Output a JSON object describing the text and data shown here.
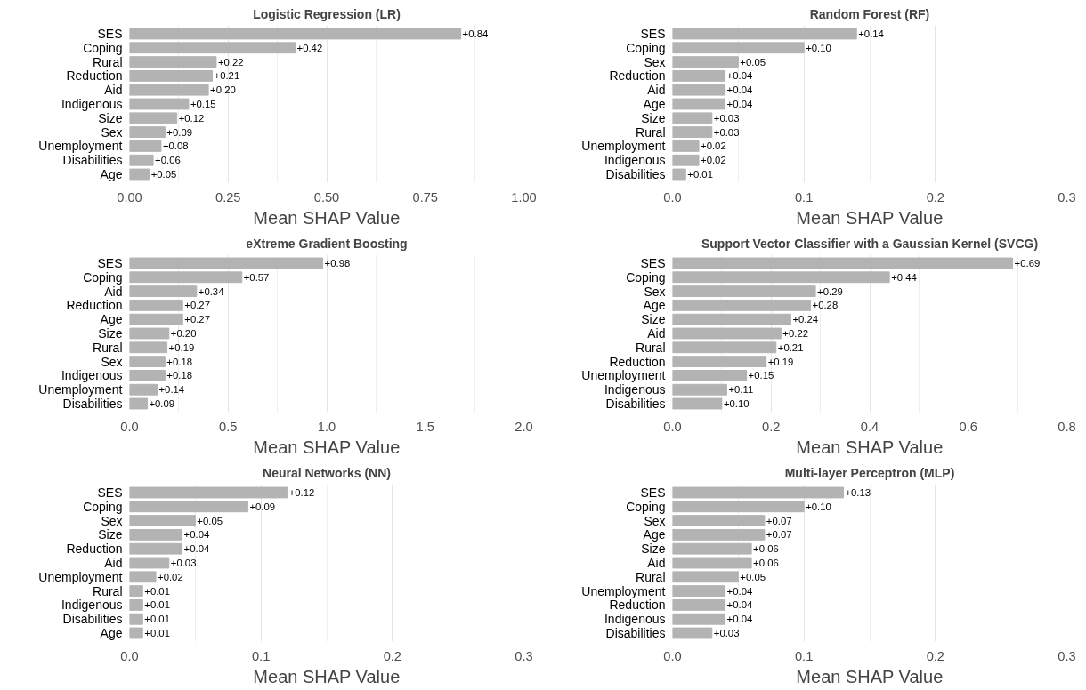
{
  "chart_data": [
    {
      "type": "bar",
      "orientation": "horizontal",
      "title": "Logistic Regression (LR)",
      "xlabel": "Mean SHAP Value",
      "grid": "x",
      "color": "#b3b3b3",
      "categories": [
        "SES",
        "Coping",
        "Rural",
        "Reduction",
        "Aid",
        "Indigenous",
        "Size",
        "Sex",
        "Unemployment",
        "Disabilities",
        "Age"
      ],
      "values": [
        0.84,
        0.42,
        0.22,
        0.21,
        0.2,
        0.15,
        0.12,
        0.09,
        0.08,
        0.06,
        0.05
      ],
      "value_labels": [
        "+0.84",
        "+0.42",
        "+0.22",
        "+0.21",
        "+0.20",
        "+0.15",
        "+0.12",
        "+0.09",
        "+0.08",
        "+0.06",
        "+0.05"
      ],
      "xlim": [
        0,
        1
      ],
      "xticks": [
        {
          "value": 0,
          "label": "0.00"
        },
        0.25,
        {
          "value": 0.5,
          "label": "0.50"
        },
        0.75,
        {
          "value": 1,
          "label": "1.00"
        }
      ]
    },
    {
      "type": "bar",
      "orientation": "horizontal",
      "title": "Random Forest (RF)",
      "xlabel": "Mean SHAP Value",
      "grid": "x",
      "color": "#b3b3b3",
      "categories": [
        "SES",
        "Coping",
        "Sex",
        "Reduction",
        "Aid",
        "Age",
        "Size",
        "Rural",
        "Unemployment",
        "Indigenous",
        "Disabilities"
      ],
      "values": [
        0.14,
        0.1,
        0.05,
        0.04,
        0.04,
        0.04,
        0.03,
        0.03,
        0.02,
        0.02,
        0.01
      ],
      "value_labels": [
        "+0.14",
        "+0.10",
        "+0.05",
        "+0.04",
        "+0.04",
        "+0.04",
        "+0.03",
        "+0.03",
        "+0.02",
        "+0.02",
        "+0.01"
      ],
      "xlim": [
        0,
        0.3
      ],
      "xticks": [
        {
          "value": 0,
          "label": "0.0"
        },
        0.1,
        0.2,
        0.3
      ]
    },
    {
      "type": "bar",
      "orientation": "horizontal",
      "title": "eXtreme Gradient Boosting",
      "xlabel": "Mean SHAP Value",
      "grid": "x",
      "color": "#b3b3b3",
      "categories": [
        "SES",
        "Coping",
        "Aid",
        "Reduction",
        "Age",
        "Size",
        "Rural",
        "Sex",
        "Indigenous",
        "Unemployment",
        "Disabilities"
      ],
      "values": [
        0.98,
        0.57,
        0.34,
        0.27,
        0.27,
        0.2,
        0.19,
        0.18,
        0.18,
        0.14,
        0.09
      ],
      "value_labels": [
        "+0.98",
        "+0.57",
        "+0.34",
        "+0.27",
        "+0.27",
        "+0.20",
        "+0.19",
        "+0.18",
        "+0.18",
        "+0.14",
        "+0.09"
      ],
      "xlim": [
        0,
        2
      ],
      "xticks": [
        {
          "value": 0,
          "label": "0.0"
        },
        0.5,
        {
          "value": 1,
          "label": "1.0"
        },
        1.5,
        {
          "value": 2,
          "label": "2.0"
        }
      ]
    },
    {
      "type": "bar",
      "orientation": "horizontal",
      "title": "Support Vector Classifier with a Gaussian Kernel (SVCG)",
      "xlabel": "Mean SHAP Value",
      "grid": "x",
      "color": "#b3b3b3",
      "categories": [
        "SES",
        "Coping",
        "Sex",
        "Age",
        "Size",
        "Aid",
        "Rural",
        "Reduction",
        "Unemployment",
        "Indigenous",
        "Disabilities"
      ],
      "values": [
        0.69,
        0.44,
        0.29,
        0.28,
        0.24,
        0.22,
        0.21,
        0.19,
        0.15,
        0.11,
        0.1
      ],
      "value_labels": [
        "+0.69",
        "+0.44",
        "+0.29",
        "+0.28",
        "+0.24",
        "+0.22",
        "+0.21",
        "+0.19",
        "+0.15",
        "+0.11",
        "+0.10"
      ],
      "xlim": [
        0,
        0.8
      ],
      "xticks": [
        {
          "value": 0,
          "label": "0.0"
        },
        0.2,
        0.4,
        0.6,
        0.8
      ]
    },
    {
      "type": "bar",
      "orientation": "horizontal",
      "title": "Neural Networks (NN)",
      "xlabel": "Mean SHAP Value",
      "grid": "x",
      "color": "#b3b3b3",
      "categories": [
        "SES",
        "Coping",
        "Sex",
        "Size",
        "Reduction",
        "Aid",
        "Unemployment",
        "Rural",
        "Indigenous",
        "Disabilities",
        "Age"
      ],
      "values": [
        0.12,
        0.09,
        0.05,
        0.04,
        0.04,
        0.03,
        0.02,
        0.01,
        0.01,
        0.01,
        0.01
      ],
      "value_labels": [
        "+0.12",
        "+0.09",
        "+0.05",
        "+0.04",
        "+0.04",
        "+0.03",
        "+0.02",
        "+0.01",
        "+0.01",
        "+0.01",
        "+0.01"
      ],
      "xlim": [
        0,
        0.3
      ],
      "xticks": [
        {
          "value": 0,
          "label": "0.0"
        },
        0.1,
        0.2,
        0.3
      ]
    },
    {
      "type": "bar",
      "orientation": "horizontal",
      "title": "Multi-layer Perceptron (MLP)",
      "xlabel": "Mean SHAP Value",
      "grid": "x",
      "color": "#b3b3b3",
      "categories": [
        "SES",
        "Coping",
        "Sex",
        "Age",
        "Size",
        "Aid",
        "Rural",
        "Unemployment",
        "Reduction",
        "Indigenous",
        "Disabilities"
      ],
      "values": [
        0.13,
        0.1,
        0.07,
        0.07,
        0.06,
        0.06,
        0.05,
        0.04,
        0.04,
        0.04,
        0.03
      ],
      "value_labels": [
        "+0.13",
        "+0.10",
        "+0.07",
        "+0.07",
        "+0.06",
        "+0.06",
        "+0.05",
        "+0.04",
        "+0.04",
        "+0.04",
        "+0.03"
      ],
      "xlim": [
        0,
        0.3
      ],
      "xticks": [
        {
          "value": 0,
          "label": "0.0"
        },
        0.1,
        0.2,
        0.3
      ]
    }
  ]
}
